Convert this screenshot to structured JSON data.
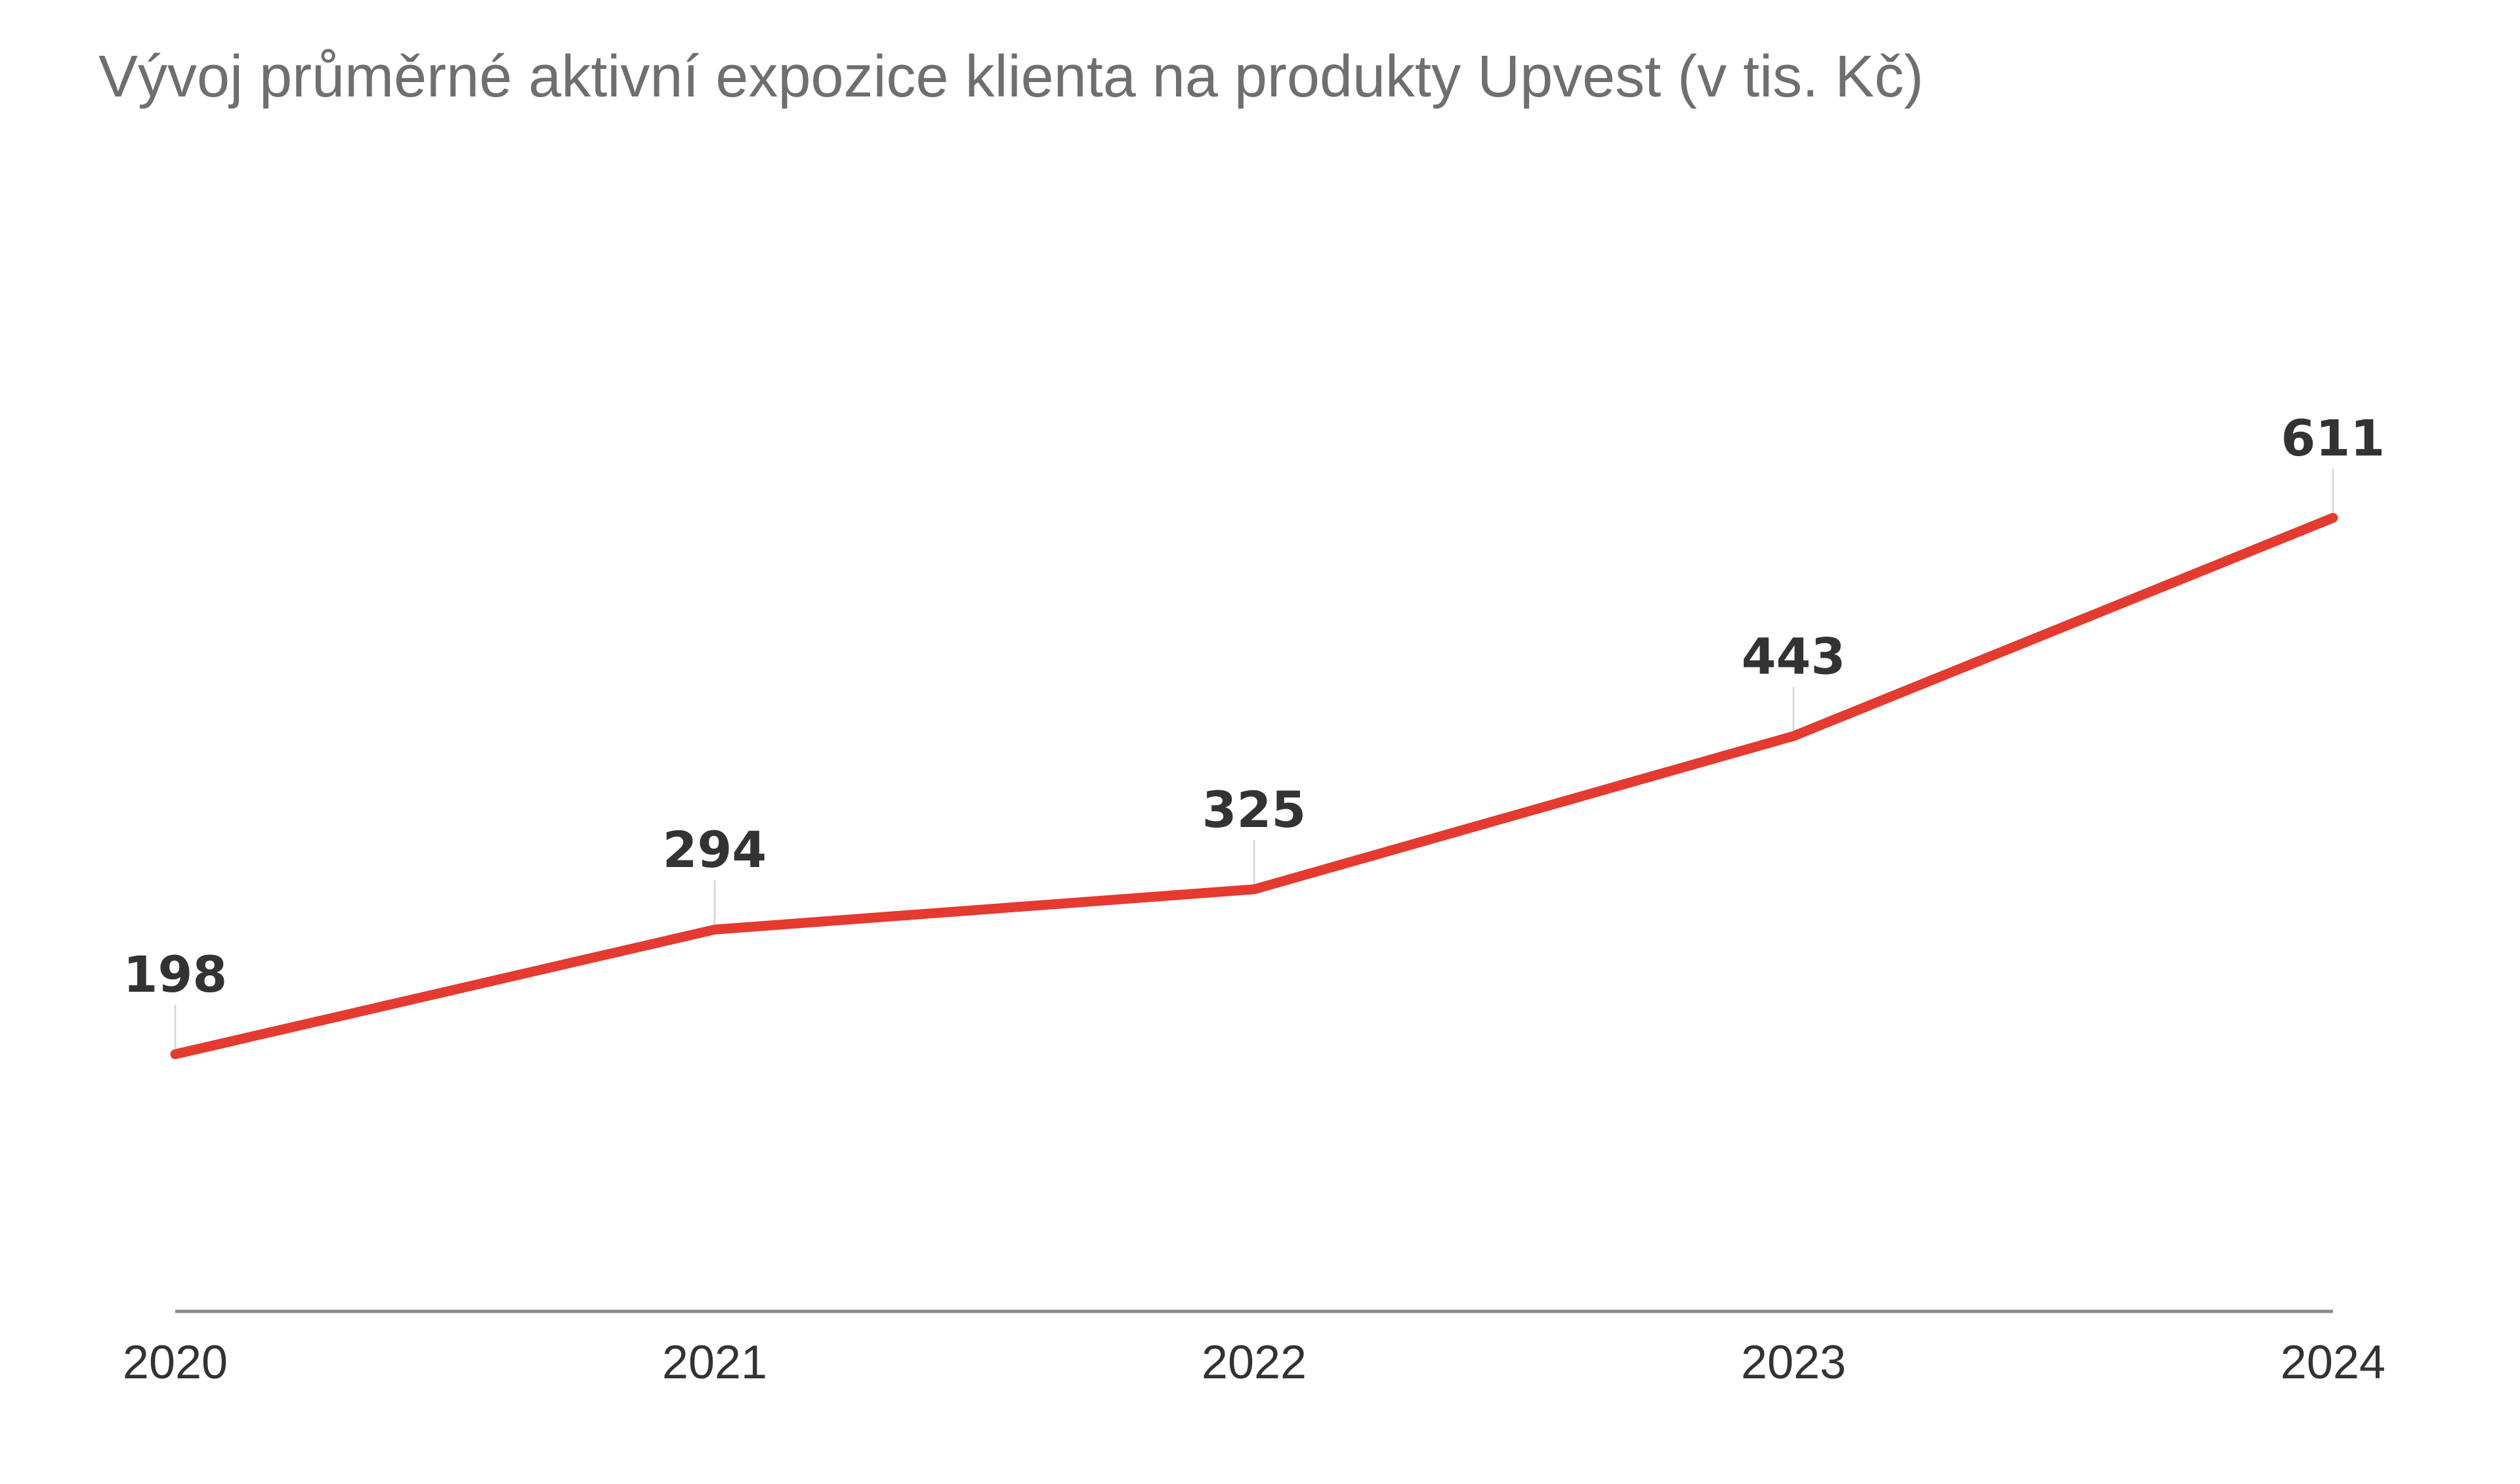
{
  "chart_data": {
    "type": "line",
    "title": "Vývoj průměrné aktivní expozice klienta na produkty Upvest (v tis. Kč)",
    "categories": [
      "2020",
      "2021",
      "2022",
      "2023",
      "2024"
    ],
    "series": [
      {
        "values": [
          198,
          294,
          325,
          443,
          611
        ]
      }
    ],
    "xlabel": "",
    "ylabel": "",
    "ylim": [
      0,
      800
    ],
    "grid": false,
    "legend": "none",
    "colors": {
      "line": "#e53a2f",
      "axis": "#888888",
      "connector": "#d9d9d9",
      "title": "#6f6f6f",
      "text": "#333333"
    }
  }
}
